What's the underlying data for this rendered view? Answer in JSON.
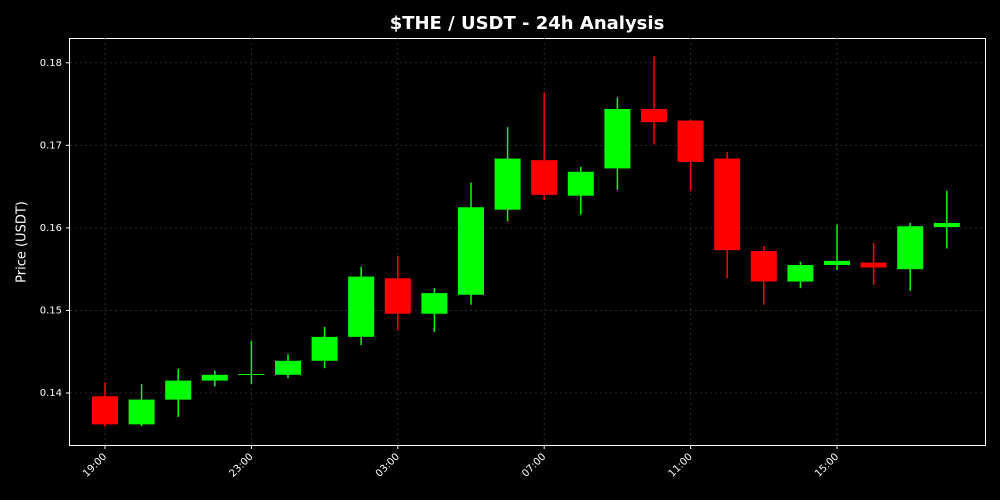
{
  "chart_data": {
    "type": "candlestick",
    "title": "$THE / USDT - 24h Analysis",
    "y_label": "Price (USDT)",
    "categories": [
      "19:00",
      null,
      null,
      null,
      "23:00",
      null,
      null,
      null,
      "03:00",
      null,
      null,
      null,
      "07:00",
      null,
      null,
      null,
      "11:00",
      null,
      null,
      null,
      "15:00",
      null,
      null,
      null
    ],
    "open": [
      0.1396,
      0.1362,
      0.1392,
      0.1415,
      0.1422,
      0.1422,
      0.1439,
      0.1468,
      0.1539,
      0.1496,
      0.1519,
      0.1622,
      0.1682,
      0.1639,
      0.1672,
      0.1744,
      0.173,
      0.1684,
      0.1572,
      0.1535,
      0.1555,
      0.1558,
      0.155,
      0.1601
    ],
    "high": [
      0.1413,
      0.1411,
      0.1429,
      0.1427,
      0.1463,
      0.1447,
      0.148,
      0.1553,
      0.1566,
      0.1527,
      0.1655,
      0.1722,
      0.1764,
      0.1674,
      0.1758,
      0.1808,
      0.1731,
      0.1692,
      0.1578,
      0.1559,
      0.1604,
      0.1582,
      0.1606,
      0.1645
    ],
    "low": [
      0.1359,
      0.136,
      0.1371,
      0.1408,
      0.1411,
      0.1418,
      0.143,
      0.1458,
      0.1476,
      0.1474,
      0.1507,
      0.1608,
      0.1634,
      0.1616,
      0.1646,
      0.1701,
      0.1645,
      0.1539,
      0.1507,
      0.1527,
      0.1549,
      0.1531,
      0.1524,
      0.1575
    ],
    "close": [
      0.1362,
      0.1392,
      0.1415,
      0.1422,
      0.1423,
      0.1439,
      0.1468,
      0.1541,
      0.1496,
      0.1521,
      0.1625,
      0.1684,
      0.164,
      0.1668,
      0.1744,
      0.1728,
      0.168,
      0.1573,
      0.1535,
      0.1555,
      0.156,
      0.1552,
      0.1602,
      0.1606
    ],
    "up_color": "#00ff00",
    "down_color": "#ff0000",
    "ylim": [
      0.1337,
      0.183
    ],
    "yticks": [
      0.14,
      0.15,
      0.16,
      0.17,
      0.18
    ],
    "grid": true
  }
}
